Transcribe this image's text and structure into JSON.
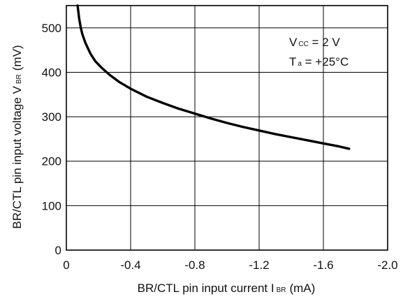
{
  "chart_data": {
    "type": "line",
    "title": "",
    "xlabel": "BR/CTL pin input current I",
    "xlabel_sub": "BR",
    "xlabel_unit": "(mA)",
    "ylabel": "BR/CTL pin input voltage V",
    "ylabel_sub": "BR",
    "ylabel_unit": "(mV)",
    "xlim": [
      0,
      -2.0
    ],
    "ylim": [
      0,
      550
    ],
    "xticks": [
      0,
      -0.4,
      -0.8,
      -1.2,
      -1.6,
      -2.0
    ],
    "xtick_labels": [
      "0",
      "-0.4",
      "-0.8",
      "-1.2",
      "-1.6",
      "-2.0"
    ],
    "yticks": [
      0,
      100,
      200,
      300,
      400,
      500
    ],
    "ytick_labels": [
      "0",
      "100",
      "200",
      "300",
      "400",
      "500"
    ],
    "grid": true,
    "annotations": [
      {
        "main": "V",
        "sub": "CC",
        "rest": " = 2 V"
      },
      {
        "main": "T",
        "sub": "a",
        "rest": " = +25°C"
      }
    ],
    "series": [
      {
        "color": "#000000",
        "x": [
          -0.07,
          -0.08,
          -0.09,
          -0.1,
          -0.12,
          -0.15,
          -0.18,
          -0.22,
          -0.27,
          -0.33,
          -0.4,
          -0.5,
          -0.6,
          -0.7,
          -0.8,
          -0.9,
          -1.0,
          -1.1,
          -1.2,
          -1.3,
          -1.4,
          -1.5,
          -1.6,
          -1.7,
          -1.76
        ],
        "y": [
          550,
          520,
          500,
          485,
          465,
          442,
          425,
          410,
          394,
          378,
          363,
          345,
          331,
          318,
          307,
          296,
          286,
          277,
          269,
          261,
          254,
          247,
          240,
          233,
          228
        ]
      }
    ]
  }
}
